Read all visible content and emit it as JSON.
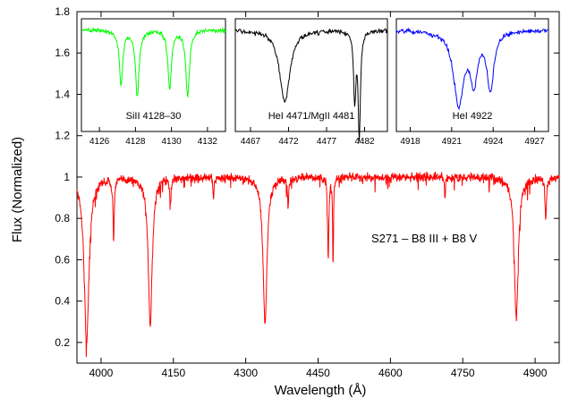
{
  "chart_data": {
    "type": "line",
    "xlabel": "Wavelength (Å)",
    "ylabel": "Flux (Normalized)",
    "annotation": "S271 – B8 III + B8 V",
    "xlim": [
      3950,
      4950
    ],
    "ylim": [
      0.1,
      1.8
    ],
    "x_ticks": [
      4000,
      4150,
      4300,
      4450,
      4600,
      4750,
      4900
    ],
    "y_ticks": [
      0.2,
      0.4,
      0.6,
      0.8,
      1,
      1.2,
      1.4,
      1.6,
      1.8
    ],
    "y_tick_labels": [
      "0.2",
      "0.4",
      "0.6",
      "0.8",
      "1",
      "1.2",
      "1.4",
      "1.6",
      "1.8"
    ],
    "grid": false,
    "colors": {
      "main": "#ff0000",
      "si": "#00ff00",
      "he": "#000000",
      "he4922": "#0000ff"
    },
    "continuum": 1.0,
    "absorption_lines": [
      {
        "x": 3970,
        "depth": 0.8,
        "width": 6
      },
      {
        "x": 4026,
        "depth": 0.3,
        "width": 1.5
      },
      {
        "x": 4102,
        "depth": 0.71,
        "width": 5
      },
      {
        "x": 4144,
        "depth": 0.12,
        "width": 1.5
      },
      {
        "x": 4233,
        "depth": 0.1,
        "width": 1.2
      },
      {
        "x": 4340,
        "depth": 0.7,
        "width": 5
      },
      {
        "x": 4388,
        "depth": 0.15,
        "width": 1.5
      },
      {
        "x": 4471,
        "depth": 0.4,
        "width": 1.5
      },
      {
        "x": 4481,
        "depth": 0.43,
        "width": 1.0
      },
      {
        "x": 4713,
        "depth": 0.1,
        "width": 1.2
      },
      {
        "x": 4861,
        "depth": 0.68,
        "width": 5
      },
      {
        "x": 4922,
        "depth": 0.2,
        "width": 1.8
      }
    ],
    "insets": [
      {
        "label": "SiII 4128–30",
        "xlim": [
          4125,
          4133
        ],
        "x_ticks": [
          4126,
          4128,
          4130,
          4132
        ],
        "series_color": "#00ff00",
        "lines": [
          {
            "x": 4127.2,
            "depth": 0.28,
            "width": 0.12
          },
          {
            "x": 4128.1,
            "depth": 0.34,
            "width": 0.12
          },
          {
            "x": 4129.9,
            "depth": 0.3,
            "width": 0.12
          },
          {
            "x": 4130.9,
            "depth": 0.34,
            "width": 0.12
          }
        ]
      },
      {
        "label": "HeI 4471/MgII 4481",
        "xlim": [
          4465,
          4485
        ],
        "x_ticks": [
          4467,
          4472,
          4477,
          4482
        ],
        "series_color": "#000000",
        "lines": [
          {
            "x": 4471.5,
            "depth": 0.38,
            "width": 0.8
          },
          {
            "x": 4480.7,
            "depth": 0.36,
            "width": 0.18
          },
          {
            "x": 4481.3,
            "depth": 0.55,
            "width": 0.18
          }
        ]
      },
      {
        "label": "HeI 4922",
        "xlim": [
          4917,
          4928
        ],
        "x_ticks": [
          4918,
          4921,
          4924,
          4927
        ],
        "series_color": "#0000ff",
        "lines": [
          {
            "x": 4921.5,
            "depth": 0.38,
            "width": 0.45
          },
          {
            "x": 4922.6,
            "depth": 0.25,
            "width": 0.3
          },
          {
            "x": 4923.8,
            "depth": 0.3,
            "width": 0.3
          }
        ]
      }
    ]
  }
}
